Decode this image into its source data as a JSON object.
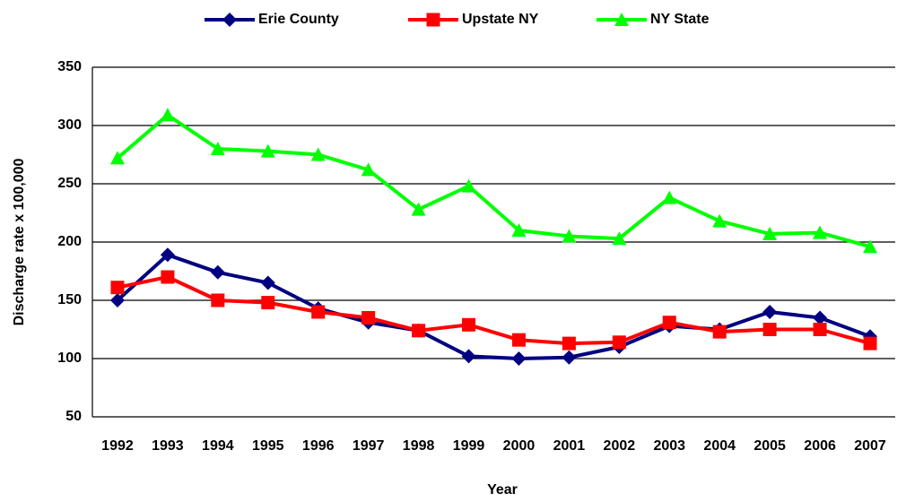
{
  "chart_data": {
    "type": "line",
    "x_label": "Year",
    "y_label": "Discharge rate x 100,000",
    "categories": [
      "1992",
      "1993",
      "1994",
      "1995",
      "1996",
      "1997",
      "1998",
      "1999",
      "2000",
      "2001",
      "2002",
      "2003",
      "2004",
      "2005",
      "2006",
      "2007"
    ],
    "series": [
      {
        "name": "Erie County",
        "color": "#000080",
        "marker": "diamond",
        "values": [
          150,
          189,
          174,
          165,
          143,
          131,
          124,
          102,
          100,
          101,
          110,
          128,
          125,
          140,
          135,
          119
        ]
      },
      {
        "name": "Upstate NY",
        "color": "#ff0000",
        "marker": "square",
        "values": [
          161,
          170,
          150,
          148,
          140,
          135,
          124,
          129,
          116,
          113,
          114,
          131,
          123,
          125,
          125,
          113
        ]
      },
      {
        "name": "NY State",
        "color": "#00ff00",
        "marker": "triangle",
        "values": [
          272,
          309,
          280,
          278,
          275,
          262,
          228,
          248,
          210,
          205,
          203,
          238,
          218,
          207,
          208,
          196
        ]
      }
    ],
    "ylim": [
      50,
      350
    ],
    "yticks": [
      50,
      100,
      150,
      200,
      250,
      300,
      350
    ],
    "grid": true,
    "legend": "top"
  }
}
